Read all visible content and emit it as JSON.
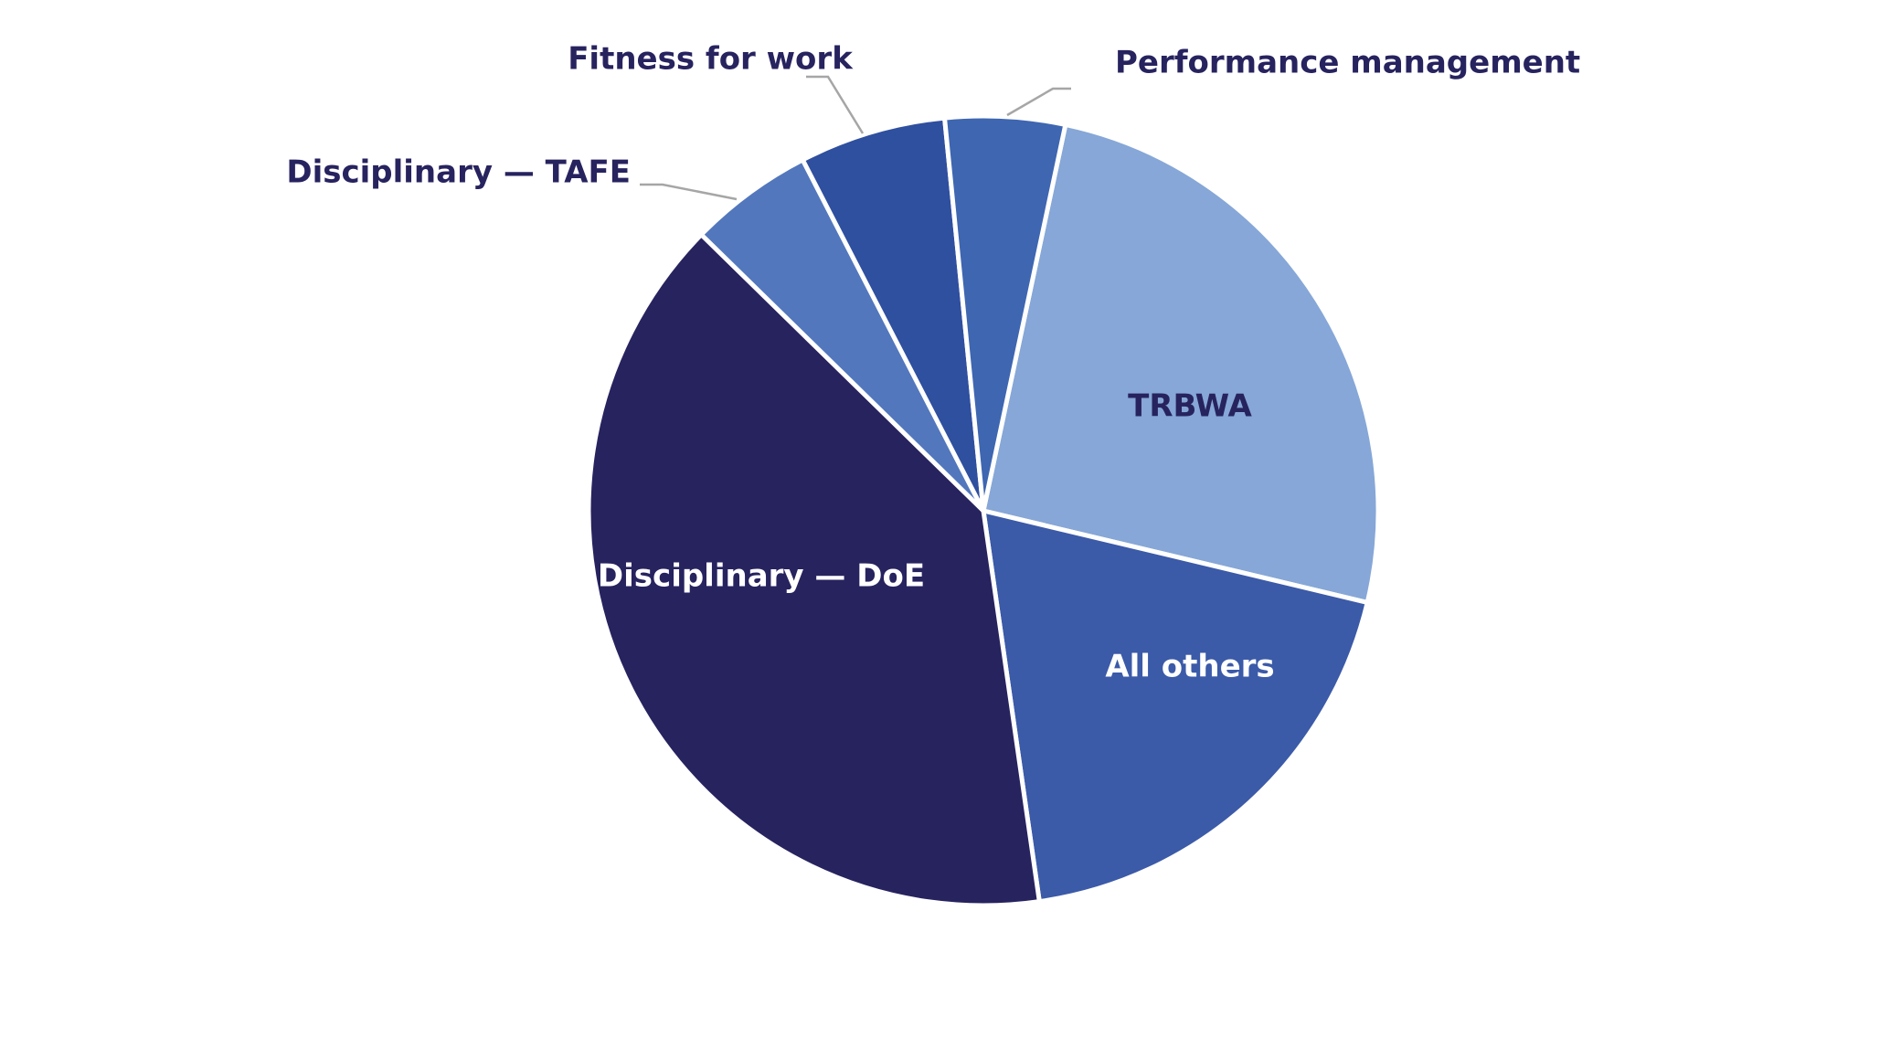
{
  "chart_data": {
    "type": "pie",
    "title": "",
    "start_angle_deg": 12,
    "direction": "clockwise",
    "slices": [
      {
        "label": "TRBWA",
        "value": 25.4,
        "color": "#86a7d7",
        "label_color": "#27235f",
        "label_placement": "inside"
      },
      {
        "label": "All others",
        "value": 19.0,
        "color": "#3b5aa8",
        "label_color": "#ffffff",
        "label_placement": "inside"
      },
      {
        "label": "Disciplinary — DoE",
        "value": 39.6,
        "color": "#27235f",
        "label_color": "#ffffff",
        "label_placement": "inside"
      },
      {
        "label": "Disciplinary — TAFE",
        "value": 5.1,
        "color": "#5277bd",
        "label_color": "#27235f",
        "label_placement": "outside"
      },
      {
        "label": "Fitness for work",
        "value": 6.0,
        "color": "#2f4f9f",
        "label_color": "#27235f",
        "label_placement": "outside"
      },
      {
        "label": "Performance management",
        "value": 4.9,
        "color": "#3e66b1",
        "label_color": "#27235f",
        "label_placement": "outside"
      }
    ],
    "legend": "none",
    "leader_line_color": "#a6a6a6",
    "separator_color": "#ffffff"
  }
}
